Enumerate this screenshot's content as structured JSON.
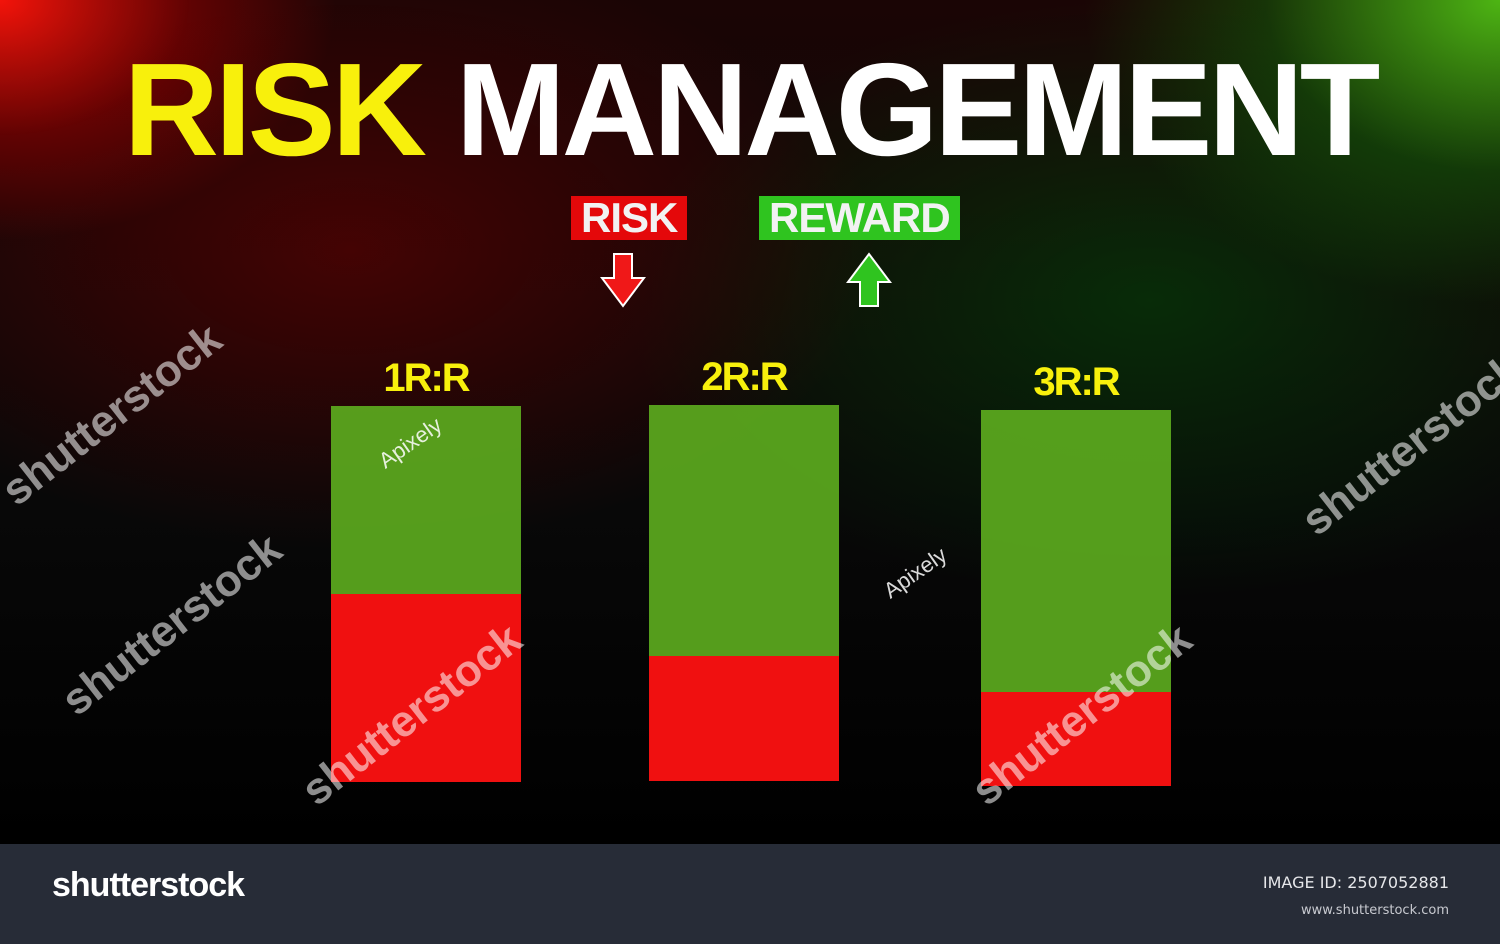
{
  "title": {
    "word1": "RISK",
    "word2": "MANAGEMENT"
  },
  "legend": {
    "risk_label": "RISK",
    "reward_label": "REWARD",
    "risk_arrow": "arrow-down-icon",
    "reward_arrow": "arrow-up-icon"
  },
  "colors": {
    "risk": "#f01010",
    "reward": "#5caa1e",
    "title_highlight": "#f8f00c"
  },
  "bars": [
    {
      "label": "1R:R",
      "risk": 1,
      "reward": 1
    },
    {
      "label": "2R:R",
      "risk": 1,
      "reward": 2
    },
    {
      "label": "3R:R",
      "risk": 1,
      "reward": 3
    }
  ],
  "watermarks": {
    "stock": "shutterstock",
    "author": "Apixely"
  },
  "footer": {
    "logo": "shutterstock",
    "image_id": "IMAGE ID: 2507052881",
    "site": "www.shutterstock.com"
  }
}
